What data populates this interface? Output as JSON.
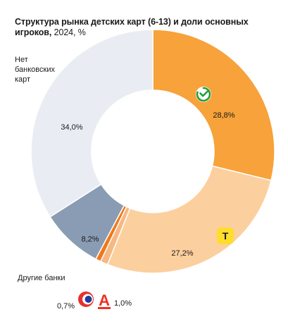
{
  "title": {
    "bold": "Структура рынка детских карт (6-13) и доли основных игроков,",
    "regular": "2024, %"
  },
  "chart_data": {
    "type": "donut",
    "title": "Структура рынка детских карт (6-13) и доли основных игроков, 2024, %",
    "start_angle_deg": 0,
    "direction": "clockwise",
    "unit": "%",
    "slices": [
      {
        "name": "Сбербанк",
        "value": 28.8,
        "label": "28,8%",
        "color": "#F7A23A",
        "icon": "sber-logo-icon"
      },
      {
        "name": "Т-Банк",
        "value": 27.2,
        "label": "27,2%",
        "color": "#FCCF9E",
        "icon": "tbank-logo-icon"
      },
      {
        "name": "Альфа-Банк",
        "value": 1.0,
        "label": "1,0%",
        "color": "#F6B884",
        "icon": "alfa-logo-icon"
      },
      {
        "name": "Совкомбанк",
        "value": 0.7,
        "label": "0,7%",
        "color": "#EE7A1C",
        "icon": "sovcom-logo-icon"
      },
      {
        "name": "Другие банки",
        "value": 8.2,
        "label": "8,2%",
        "color": "#8A9CB3",
        "icon": ""
      },
      {
        "name": "Нет банковских карт",
        "value": 34.0,
        "label": "34,0%",
        "color": "#E9EDF3",
        "icon": ""
      }
    ]
  },
  "external_labels": {
    "no_cards": [
      "Нет",
      "банковских",
      "карт"
    ],
    "other_banks": "Другие банки",
    "sovcom_value": "0,7%",
    "alfa_value": "1,0%"
  },
  "logos": {
    "tbank_letter": "Т",
    "alfa_letter": "А"
  },
  "colors": {
    "sber_green": "#21A038",
    "tbank_yellow": "#FFDD2D",
    "alfa_red": "#EF3124",
    "sovcom_blue": "#1E3C96",
    "sovcom_red": "#E4322B"
  }
}
